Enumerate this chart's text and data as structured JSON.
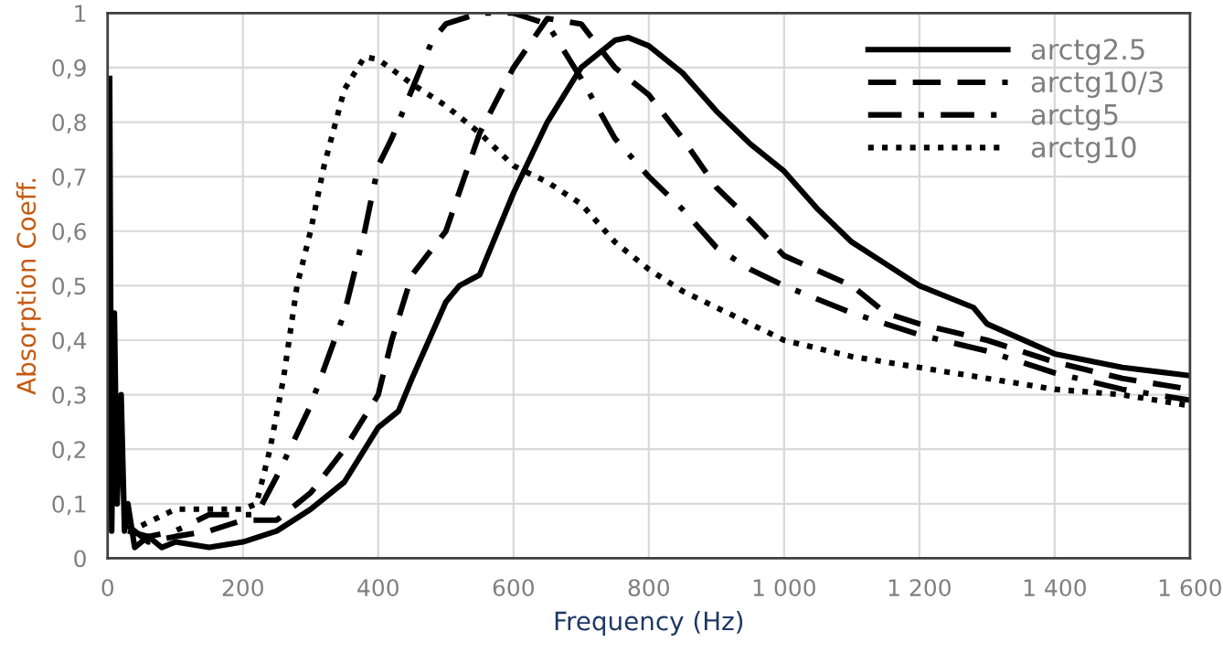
{
  "chart_data": {
    "type": "line",
    "xlabel": "Frequency (Hz)",
    "ylabel": "Absorption Coeff.",
    "xlim": [
      0,
      1600
    ],
    "ylim": [
      0,
      1
    ],
    "xticks": [
      0,
      200,
      400,
      600,
      800,
      {
        "value": 1000,
        "label": "1 000"
      },
      {
        "value": 1200,
        "label": "1 200"
      },
      {
        "value": 1400,
        "label": "1 400"
      },
      {
        "value": 1600,
        "label": "1 600"
      }
    ],
    "yticks": [
      0,
      {
        "value": 0.1,
        "label": "0,1"
      },
      {
        "value": 0.2,
        "label": "0,2"
      },
      {
        "value": 0.3,
        "label": "0,3"
      },
      {
        "value": 0.4,
        "label": "0,4"
      },
      {
        "value": 0.5,
        "label": "0,5"
      },
      {
        "value": 0.6,
        "label": "0,6"
      },
      {
        "value": 0.7,
        "label": "0,7"
      },
      {
        "value": 0.8,
        "label": "0,8"
      },
      {
        "value": 0.9,
        "label": "0,9"
      },
      1
    ],
    "grid": true,
    "legend": "top right",
    "marker": "none",
    "series": [
      {
        "name": "arctg2.5",
        "color": "#000000",
        "line_style": "solid",
        "x": [
          3,
          6,
          10,
          14,
          20,
          25,
          30,
          40,
          60,
          80,
          100,
          150,
          200,
          250,
          300,
          350,
          400,
          430,
          450,
          500,
          520,
          550,
          600,
          650,
          700,
          750,
          770,
          800,
          850,
          900,
          950,
          1000,
          1050,
          1100,
          1150,
          1200,
          1280,
          1300,
          1400,
          1500,
          1600
        ],
        "values": [
          0.88,
          0.05,
          0.45,
          0.1,
          0.3,
          0.05,
          0.1,
          0.02,
          0.04,
          0.02,
          0.03,
          0.02,
          0.03,
          0.05,
          0.09,
          0.14,
          0.24,
          0.27,
          0.33,
          0.47,
          0.5,
          0.52,
          0.67,
          0.8,
          0.9,
          0.95,
          0.955,
          0.94,
          0.89,
          0.82,
          0.76,
          0.71,
          0.64,
          0.58,
          0.54,
          0.5,
          0.46,
          0.43,
          0.375,
          0.35,
          0.335
        ]
      },
      {
        "name": "arctg10/3",
        "color": "#000000",
        "line_style": "dashed",
        "x": [
          30,
          60,
          100,
          150,
          200,
          250,
          300,
          350,
          400,
          420,
          450,
          500,
          550,
          600,
          650,
          700,
          750,
          800,
          850,
          900,
          950,
          1000,
          1100,
          1150,
          1200,
          1300,
          1400,
          1500,
          1600
        ],
        "values": [
          0.06,
          0.03,
          0.04,
          0.05,
          0.07,
          0.07,
          0.12,
          0.2,
          0.3,
          0.4,
          0.52,
          0.6,
          0.78,
          0.9,
          0.99,
          0.98,
          0.9,
          0.85,
          0.77,
          0.68,
          0.62,
          0.555,
          0.5,
          0.45,
          0.43,
          0.4,
          0.36,
          0.33,
          0.31
        ]
      },
      {
        "name": "arctg5",
        "color": "#000000",
        "line_style": "dashdot",
        "x": [
          30,
          60,
          100,
          150,
          200,
          220,
          250,
          300,
          350,
          380,
          400,
          420,
          440,
          480,
          500,
          550,
          600,
          650,
          700,
          750,
          800,
          850,
          900,
          950,
          1000,
          1100,
          1200,
          1300,
          1400,
          1500,
          1600
        ],
        "values": [
          0.05,
          0.04,
          0.05,
          0.08,
          0.08,
          0.08,
          0.15,
          0.28,
          0.45,
          0.6,
          0.72,
          0.77,
          0.83,
          0.95,
          0.98,
          1.0,
          1.0,
          0.98,
          0.88,
          0.77,
          0.7,
          0.64,
          0.57,
          0.53,
          0.5,
          0.45,
          0.41,
          0.38,
          0.34,
          0.31,
          0.29
        ]
      },
      {
        "name": "arctg10",
        "color": "#000000",
        "line_style": "dotted",
        "x": [
          50,
          100,
          150,
          200,
          220,
          240,
          260,
          280,
          300,
          320,
          350,
          380,
          400,
          450,
          500,
          550,
          600,
          650,
          700,
          750,
          800,
          850,
          900,
          950,
          1000,
          1100,
          1200,
          1300,
          1400,
          1500,
          1600
        ],
        "values": [
          0.06,
          0.09,
          0.09,
          0.09,
          0.1,
          0.2,
          0.33,
          0.5,
          0.6,
          0.72,
          0.86,
          0.92,
          0.915,
          0.87,
          0.83,
          0.78,
          0.72,
          0.69,
          0.65,
          0.58,
          0.53,
          0.49,
          0.46,
          0.43,
          0.4,
          0.37,
          0.35,
          0.33,
          0.31,
          0.3,
          0.28
        ]
      }
    ]
  }
}
